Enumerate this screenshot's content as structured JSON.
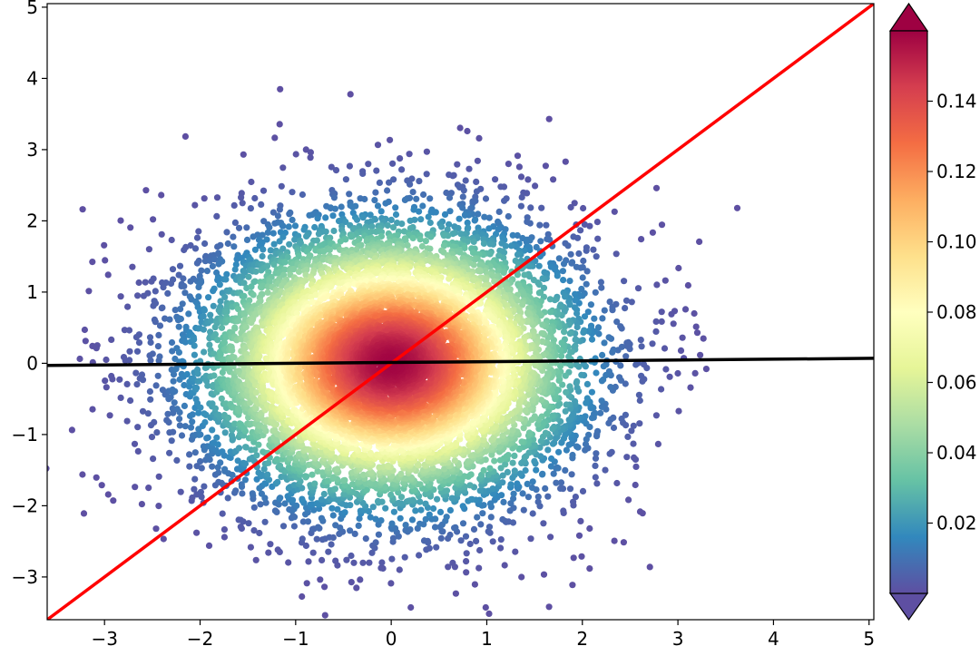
{
  "chart_data": {
    "type": "scatter",
    "title": "",
    "xlabel": "",
    "ylabel": "",
    "xlim": [
      -3.6,
      5.05
    ],
    "ylim": [
      -3.6,
      5.05
    ],
    "x_ticks": [
      -3,
      -2,
      -1,
      0,
      1,
      2,
      3,
      4,
      5
    ],
    "y_ticks": [
      -3,
      -2,
      -1,
      0,
      1,
      2,
      3,
      4,
      5
    ],
    "x_tick_labels": [
      "−3",
      "−2",
      "−1",
      "0",
      "1",
      "2",
      "3",
      "4",
      "5"
    ],
    "y_tick_labels": [
      "−3",
      "−2",
      "−1",
      "0",
      "1",
      "2",
      "3",
      "4",
      "5"
    ],
    "grid": false,
    "points": {
      "description": "bivariate standard normal sample, colored by estimated density",
      "count": 10000,
      "mean": [
        0,
        0
      ],
      "std": [
        1,
        1
      ],
      "colormap": "Spectral_r"
    },
    "lines": [
      {
        "label": "identity",
        "color": "#ff0000",
        "slope": 1.0,
        "intercept": 0.0
      },
      {
        "label": "regression",
        "color": "#000000",
        "slope": 0.0115,
        "intercept": 0.0117
      }
    ],
    "colorbar": {
      "min": 0.0,
      "max": 0.16,
      "ticks": [
        0.02,
        0.04,
        0.06,
        0.08,
        0.1,
        0.12,
        0.14
      ],
      "tick_labels": [
        "0.02",
        "0.04",
        "0.06",
        "0.08",
        "0.10",
        "0.12",
        "0.14"
      ],
      "extend": "both",
      "colormap": "Spectral_r"
    }
  }
}
